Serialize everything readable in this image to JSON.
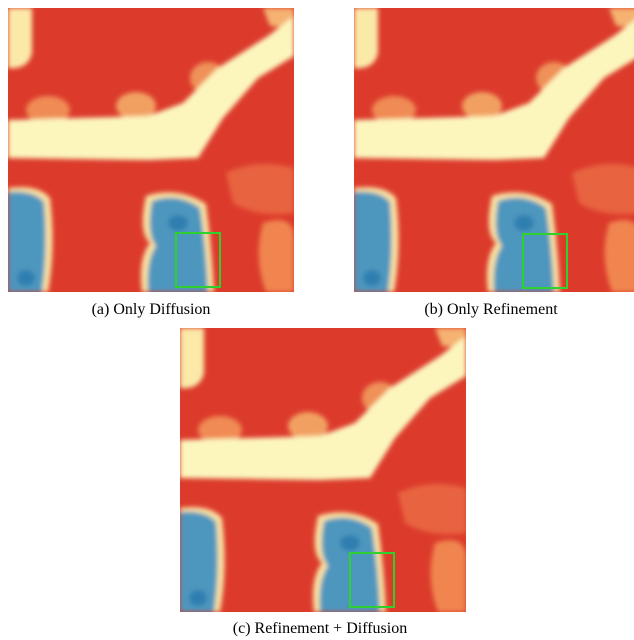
{
  "figure": {
    "panels": [
      {
        "caption": "(a) Only Diffusion"
      },
      {
        "caption": "(b) Only Refinement"
      },
      {
        "caption": "(c) Refinement + Diffusion"
      }
    ]
  }
}
